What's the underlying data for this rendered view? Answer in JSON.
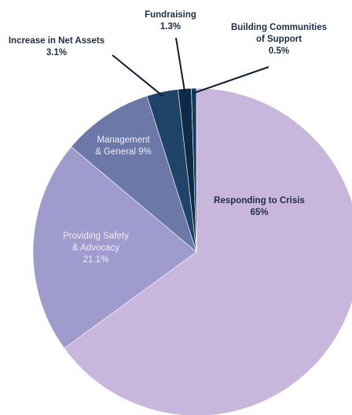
{
  "chart_data": {
    "type": "pie",
    "slices": [
      {
        "label_lines": [
          "Responding to Crisis",
          "65%"
        ],
        "value": 65,
        "color": "#c8b6dd",
        "label_style": "inside-dark"
      },
      {
        "label_lines": [
          "Providing Safety",
          "& Advocacy",
          "21.1%"
        ],
        "value": 21.1,
        "color": "#9f9bcd",
        "label_style": "inside-light"
      },
      {
        "label_lines": [
          "Management",
          "& General 9%"
        ],
        "value": 9,
        "color": "#6b78a8",
        "label_style": "inside-light"
      },
      {
        "label_lines": [
          "Increase in Net Assets",
          "3.1%"
        ],
        "value": 3.1,
        "color": "#1f4468",
        "label_style": "outside"
      },
      {
        "label_lines": [
          "Fundraising",
          "1.3%"
        ],
        "value": 1.3,
        "color": "#0f2a48",
        "label_style": "outside"
      },
      {
        "label_lines": [
          "Building Communities",
          "of Support",
          "0.5%"
        ],
        "value": 0.5,
        "color": "#143a5c",
        "label_style": "outside"
      }
    ]
  }
}
